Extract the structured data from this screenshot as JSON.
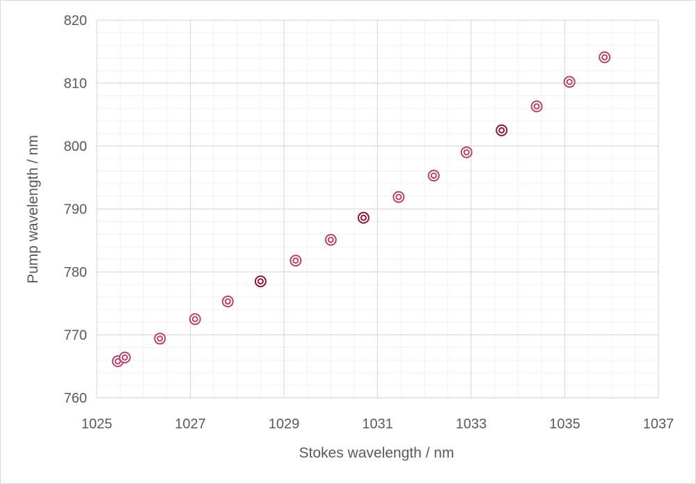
{
  "chart_data": {
    "type": "scatter",
    "title": "",
    "xlabel": "Stokes wavelength / nm",
    "ylabel": "Pump wavelength / nm",
    "xlim": [
      1025,
      1037
    ],
    "ylim": [
      760,
      820
    ],
    "x_ticks": [
      1025,
      1027,
      1029,
      1031,
      1033,
      1035,
      1037
    ],
    "y_ticks": [
      760,
      770,
      780,
      790,
      800,
      810,
      820
    ],
    "x_tick_labels": [
      "1025",
      "1027",
      "1029",
      "1031",
      "1033",
      "1035",
      "1037"
    ],
    "y_tick_labels": [
      "760",
      "770",
      "780",
      "790",
      "800",
      "810",
      "820"
    ],
    "grid": true,
    "minor_grid": true,
    "legend": "none",
    "marker_color": "#b5426c",
    "highlight_color": "#8b1538",
    "series": [
      {
        "points": [
          {
            "x": 1025.45,
            "y": 765.8,
            "highlight": false
          },
          {
            "x": 1025.6,
            "y": 766.4,
            "highlight": false
          },
          {
            "x": 1026.35,
            "y": 769.4,
            "highlight": false
          },
          {
            "x": 1027.1,
            "y": 772.5,
            "highlight": false
          },
          {
            "x": 1027.8,
            "y": 775.3,
            "highlight": false
          },
          {
            "x": 1028.5,
            "y": 778.5,
            "highlight": true
          },
          {
            "x": 1029.25,
            "y": 781.8,
            "highlight": false
          },
          {
            "x": 1030.0,
            "y": 785.1,
            "highlight": false
          },
          {
            "x": 1030.7,
            "y": 788.6,
            "highlight": true
          },
          {
            "x": 1031.45,
            "y": 791.9,
            "highlight": false
          },
          {
            "x": 1032.2,
            "y": 795.3,
            "highlight": false
          },
          {
            "x": 1032.9,
            "y": 799.0,
            "highlight": false
          },
          {
            "x": 1033.65,
            "y": 802.5,
            "highlight": true
          },
          {
            "x": 1034.4,
            "y": 806.3,
            "highlight": false
          },
          {
            "x": 1035.1,
            "y": 810.2,
            "highlight": false
          },
          {
            "x": 1035.85,
            "y": 814.1,
            "highlight": false
          }
        ]
      }
    ]
  }
}
